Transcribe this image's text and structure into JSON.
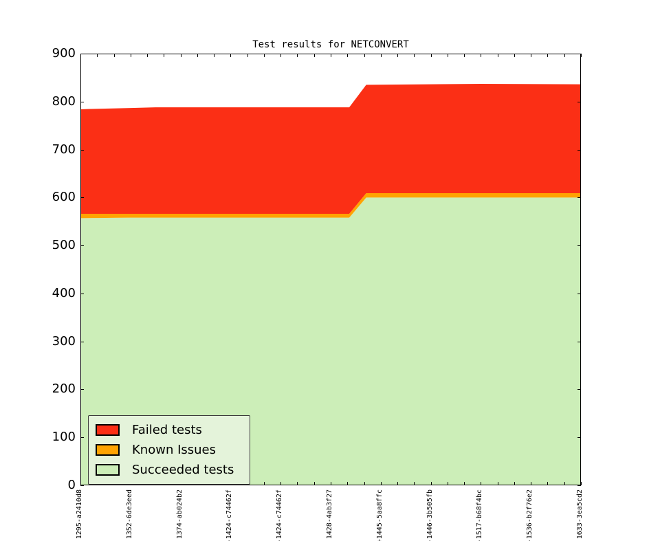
{
  "title": "Test results for NETCONVERT",
  "chart_data": {
    "type": "area",
    "stacked": true,
    "title": "Test results for NETCONVERT",
    "xlabel": "",
    "ylabel": "",
    "ylim": [
      0,
      900
    ],
    "yticks": [
      0,
      100,
      200,
      300,
      400,
      500,
      600,
      700,
      800,
      900
    ],
    "grid": false,
    "categories": [
      "1295-a2410d8",
      "1352-6de3eed",
      "1374-ab024b2",
      "-1424-c74462f",
      "-1424-c74462f",
      "1428-4ab3f27",
      "+1445-5aa8ffc",
      "-1446-3b505fb",
      "-1517-b68f4bc",
      "-1536-b2f76e2",
      "1633-3ea5cd2"
    ],
    "minor_ticks_per_interval": 3,
    "series": [
      {
        "name": "Succeeded tests",
        "color": "#cceeb8",
        "points": [
          [
            0,
            557
          ],
          [
            1,
            558
          ],
          [
            5.37,
            558
          ],
          [
            5.71,
            600
          ],
          [
            10,
            600
          ]
        ]
      },
      {
        "name": "Known Issues",
        "color": "#ffa302",
        "points": [
          [
            0,
            9
          ],
          [
            1,
            8
          ],
          [
            5.37,
            8
          ],
          [
            5.71,
            9
          ],
          [
            10,
            9
          ]
        ]
      },
      {
        "name": "Failed tests",
        "color": "#fb2f15",
        "points": [
          [
            0,
            218
          ],
          [
            1.5,
            222
          ],
          [
            5.37,
            222
          ],
          [
            5.71,
            226
          ],
          [
            8,
            228
          ],
          [
            10,
            227
          ]
        ]
      }
    ],
    "legend": {
      "position": "lower left",
      "entries": [
        "Failed tests",
        "Known Issues",
        "Succeeded tests"
      ]
    }
  }
}
